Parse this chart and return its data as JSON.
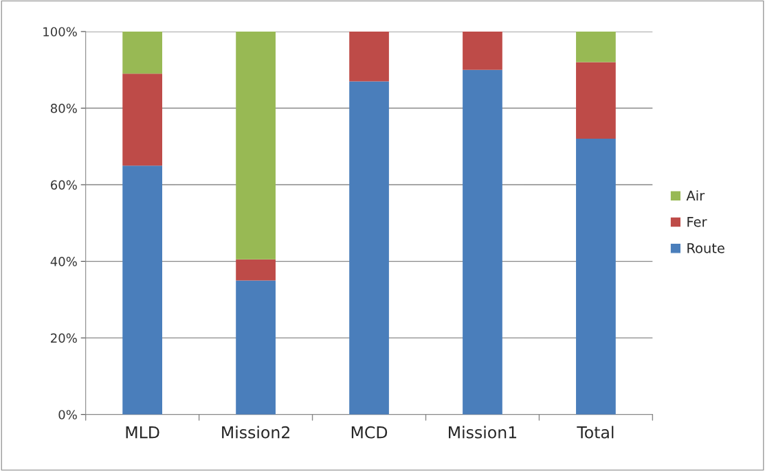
{
  "chart_data": {
    "type": "bar",
    "stacked": true,
    "categories": [
      "MLD",
      "Mission2",
      "MCD",
      "Mission1",
      "Total"
    ],
    "series": [
      {
        "name": "Route",
        "color": "#4a7ebb",
        "values": [
          65,
          35,
          87,
          90,
          72
        ]
      },
      {
        "name": "Fer",
        "color": "#be4b48",
        "values": [
          24,
          5.5,
          13,
          10,
          20
        ]
      },
      {
        "name": "Air",
        "color": "#98b954",
        "values": [
          11,
          59.5,
          0,
          0,
          8
        ]
      }
    ],
    "ylim": [
      0,
      100
    ],
    "yticks": [
      {
        "value": 0,
        "label": "0%"
      },
      {
        "value": 20,
        "label": "20%"
      },
      {
        "value": 40,
        "label": "40%"
      },
      {
        "value": 60,
        "label": "60%"
      },
      {
        "value": 80,
        "label": "80%"
      },
      {
        "value": 100,
        "label": "100%"
      }
    ],
    "grid": "y",
    "legend": "right"
  }
}
